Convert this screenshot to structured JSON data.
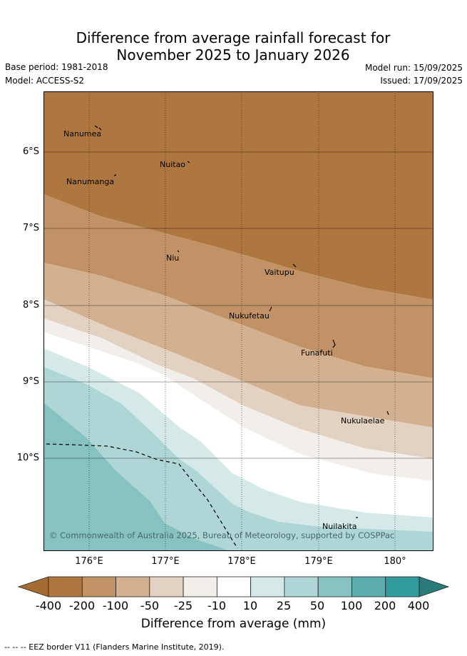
{
  "title": {
    "line1": "Difference from average rainfall forecast for",
    "line2": "November 2025 to January 2026"
  },
  "meta": {
    "base_period": "Base period: 1981-2018",
    "model": "Model: ACCESS-S2",
    "model_run": "Model run: 15/09/2025",
    "issued": "Issued: 17/09/2025"
  },
  "map": {
    "latitude_labels": [
      "6°S",
      "7°S",
      "8°S",
      "9°S",
      "10°S"
    ],
    "longitude_labels": [
      "176°E",
      "177°E",
      "178°E",
      "179°E",
      "180°"
    ],
    "places": [
      "Nanumea",
      "Nuitao",
      "Nanumanga",
      "Niu",
      "Vaitupu",
      "Nukufetau",
      "Funafuti",
      "Nukulaelae",
      "Nuilakita"
    ],
    "copyright": "© Commonwealth of Australia 2025, Bureau of Meteorology, supported by COSPPac"
  },
  "colorbar": {
    "title": "Difference from average (mm)",
    "ticks": [
      "-400",
      "-200",
      "-100",
      "-50",
      "-25",
      "-10",
      "10",
      "25",
      "50",
      "100",
      "200",
      "400"
    ],
    "colors": [
      "#a56b31",
      "#ad773f",
      "#c09266",
      "#d3b190",
      "#e3d1c1",
      "#f2eee9",
      "#ffffff",
      "#d5e9e8",
      "#aed6d5",
      "#87c2c2",
      "#5cadad",
      "#329b9b",
      "#2c7b7b"
    ]
  },
  "footnote": "-- -- -- EEZ border V11 (Flanders Marine Institute, 2019)."
}
